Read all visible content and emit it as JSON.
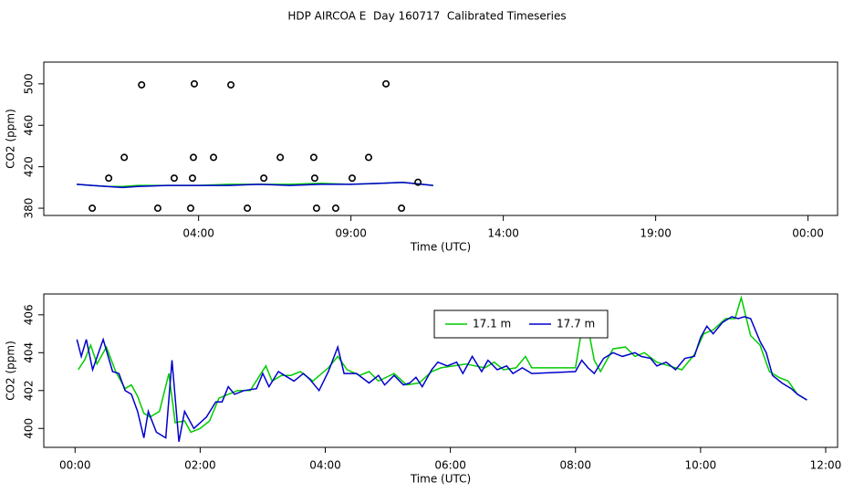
{
  "title": "HDP AIRCOA E  Day 160717  Calibrated Timeseries",
  "chart_data": [
    {
      "type": "line",
      "xlabel": "Time (UTC)",
      "ylabel": "CO2 (ppm)",
      "xlim": [
        -1.08,
        24.97
      ],
      "ylim": [
        373,
        521
      ],
      "xticks": [
        {
          "value": 4,
          "label": "04:00"
        },
        {
          "value": 9,
          "label": "09:00"
        },
        {
          "value": 14,
          "label": "14:00"
        },
        {
          "value": 19,
          "label": "19:00"
        },
        {
          "value": 24,
          "label": "00:00"
        }
      ],
      "yticks": [
        380,
        420,
        460,
        500
      ],
      "x": [
        0,
        0.5,
        1,
        1.5,
        2,
        3,
        4,
        5,
        6,
        7,
        8,
        9,
        10,
        10.7,
        11.7
      ],
      "series": [
        {
          "name": "17.1 m",
          "color": "#00cc00",
          "values": [
            403,
            402,
            401,
            401,
            402,
            402,
            402,
            403,
            403,
            403,
            404,
            403,
            404,
            405,
            402
          ]
        },
        {
          "name": "17.7 m",
          "color": "#0000cc",
          "values": [
            403,
            402,
            401,
            400,
            401,
            402,
            402,
            402,
            403,
            402,
            403,
            403,
            404,
            405,
            402
          ]
        }
      ],
      "points": {
        "x": [
          0.51,
          1.05,
          1.56,
          2.13,
          2.66,
          3.2,
          3.74,
          3.8,
          3.83,
          3.86,
          4.49,
          5.06,
          5.6,
          6.14,
          6.68,
          7.78,
          7.81,
          7.87,
          8.5,
          9.04,
          9.58,
          10.15,
          10.66,
          11.2
        ],
        "values": [
          380,
          409,
          429,
          499,
          380,
          409,
          380,
          409,
          429,
          500,
          429,
          499,
          380,
          409,
          429,
          429,
          409,
          380,
          380,
          409,
          429,
          500,
          380,
          405
        ]
      }
    },
    {
      "type": "line",
      "xlabel": "Time (UTC)",
      "ylabel": "CO2 (ppm)",
      "xlim": [
        -0.5,
        12.19
      ],
      "ylim": [
        399.0,
        407.1
      ],
      "xticks": [
        {
          "value": 0,
          "label": "00:00"
        },
        {
          "value": 2,
          "label": "02:00"
        },
        {
          "value": 4,
          "label": "04:00"
        },
        {
          "value": 6,
          "label": "06:00"
        },
        {
          "value": 8,
          "label": "08:00"
        },
        {
          "value": 10,
          "label": "10:00"
        },
        {
          "value": 12,
          "label": "12:00"
        }
      ],
      "yticks": [
        400,
        402,
        404,
        406
      ],
      "legend": "top",
      "series": [
        {
          "name": "17.1 m",
          "color": "#00cc00",
          "x": [
            0.05,
            0.15,
            0.25,
            0.35,
            0.5,
            0.65,
            0.8,
            0.9,
            1.0,
            1.1,
            1.2,
            1.35,
            1.5,
            1.6,
            1.75,
            1.85,
            2.0,
            2.15,
            2.3,
            2.45,
            2.6,
            2.8,
            3.05,
            3.15,
            3.3,
            3.45,
            3.6,
            3.8,
            4.05,
            4.2,
            4.35,
            4.55,
            4.7,
            4.85,
            5.1,
            5.3,
            5.5,
            5.7,
            5.85,
            6.05,
            6.25,
            6.4,
            6.55,
            6.7,
            6.85,
            7.05,
            7.2,
            7.3,
            8.0,
            8.15,
            8.3,
            8.4,
            8.6,
            8.8,
            8.95,
            9.1,
            9.3,
            9.5,
            9.7,
            9.9,
            10.05,
            10.2,
            10.4,
            10.55,
            10.65,
            10.8,
            10.95,
            11.1,
            11.25,
            11.4,
            11.55,
            11.7
          ],
          "values": [
            403.1,
            403.6,
            404.4,
            403.4,
            404.3,
            403.0,
            402.1,
            402.3,
            401.7,
            400.8,
            400.6,
            400.9,
            402.9,
            400.3,
            400.4,
            399.8,
            400.0,
            400.4,
            401.6,
            401.8,
            402.0,
            402.0,
            403.3,
            402.5,
            402.8,
            402.8,
            403.0,
            402.5,
            403.2,
            403.8,
            403.1,
            402.8,
            403.0,
            402.5,
            402.9,
            402.3,
            402.4,
            403.0,
            403.2,
            403.3,
            403.4,
            403.3,
            403.2,
            403.5,
            403.1,
            403.2,
            403.8,
            403.2,
            403.2,
            406.2,
            403.6,
            403.0,
            404.2,
            404.3,
            403.8,
            404.0,
            403.5,
            403.3,
            403.1,
            403.9,
            405.0,
            405.2,
            405.8,
            405.8,
            406.9,
            404.9,
            404.4,
            403.0,
            402.7,
            402.5,
            401.8,
            401.5
          ]
        },
        {
          "name": "17.7 m",
          "color": "#0000cc",
          "x": [
            0.03,
            0.1,
            0.18,
            0.28,
            0.45,
            0.6,
            0.7,
            0.8,
            0.9,
            1.0,
            1.1,
            1.17,
            1.3,
            1.45,
            1.55,
            1.66,
            1.75,
            1.9,
            2.1,
            2.25,
            2.35,
            2.45,
            2.55,
            2.7,
            2.9,
            3.0,
            3.1,
            3.25,
            3.35,
            3.5,
            3.65,
            3.75,
            3.9,
            4.05,
            4.2,
            4.3,
            4.5,
            4.7,
            4.85,
            4.95,
            5.1,
            5.25,
            5.35,
            5.45,
            5.55,
            5.7,
            5.8,
            5.95,
            6.1,
            6.2,
            6.35,
            6.5,
            6.6,
            6.75,
            6.9,
            7.0,
            7.15,
            7.3,
            8.0,
            8.1,
            8.2,
            8.3,
            8.45,
            8.6,
            8.75,
            8.95,
            9.05,
            9.2,
            9.3,
            9.45,
            9.6,
            9.75,
            9.9,
            10.0,
            10.1,
            10.2,
            10.35,
            10.5,
            10.6,
            10.7,
            10.8,
            10.95,
            11.05,
            11.15,
            11.3,
            11.45,
            11.55,
            11.7
          ],
          "values": [
            404.7,
            403.8,
            404.7,
            403.1,
            404.7,
            403.0,
            402.9,
            402.0,
            401.8,
            400.9,
            399.5,
            400.9,
            399.8,
            399.5,
            403.6,
            399.3,
            400.9,
            400.0,
            400.6,
            401.4,
            401.4,
            402.2,
            401.8,
            402.0,
            402.1,
            402.9,
            402.2,
            403.0,
            402.8,
            402.5,
            402.9,
            402.6,
            402.0,
            403.0,
            404.3,
            402.9,
            402.9,
            402.4,
            402.8,
            402.3,
            402.8,
            402.3,
            402.4,
            402.7,
            402.2,
            403.1,
            403.5,
            403.3,
            403.5,
            402.9,
            403.8,
            403.0,
            403.6,
            403.1,
            403.3,
            402.9,
            403.2,
            402.9,
            403.0,
            403.6,
            403.2,
            402.9,
            403.7,
            404.0,
            403.8,
            404.0,
            403.8,
            403.7,
            403.3,
            403.5,
            403.1,
            403.7,
            403.8,
            404.8,
            405.4,
            405.0,
            405.6,
            405.9,
            405.8,
            405.9,
            405.8,
            404.6,
            404.0,
            402.8,
            402.4,
            402.1,
            401.8,
            401.5
          ]
        }
      ]
    }
  ]
}
